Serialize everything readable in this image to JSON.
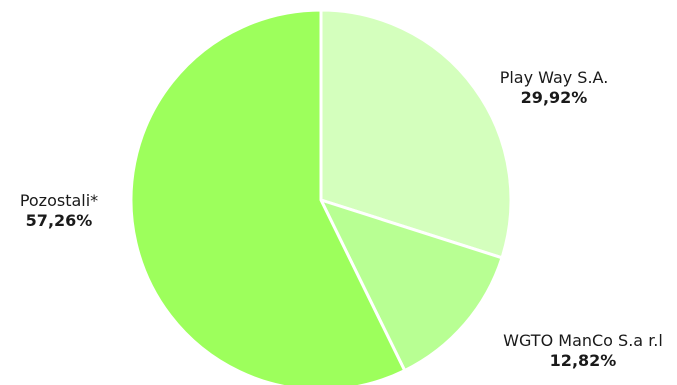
{
  "chart_data": {
    "type": "pie",
    "slices": [
      {
        "label": "Play Way S.A.",
        "value": 29.92,
        "display": "29,92%",
        "color": "#d4ffbd"
      },
      {
        "label": "WGTO ManCo S.a r.l",
        "value": 12.82,
        "display": "12,82%",
        "color": "#b8ff93"
      },
      {
        "label": "Pozostali*",
        "value": 57.26,
        "display": "57,26%",
        "color": "#9dff5c"
      }
    ],
    "legend": "none",
    "start_angle": "12 o'clock, clockwise"
  }
}
